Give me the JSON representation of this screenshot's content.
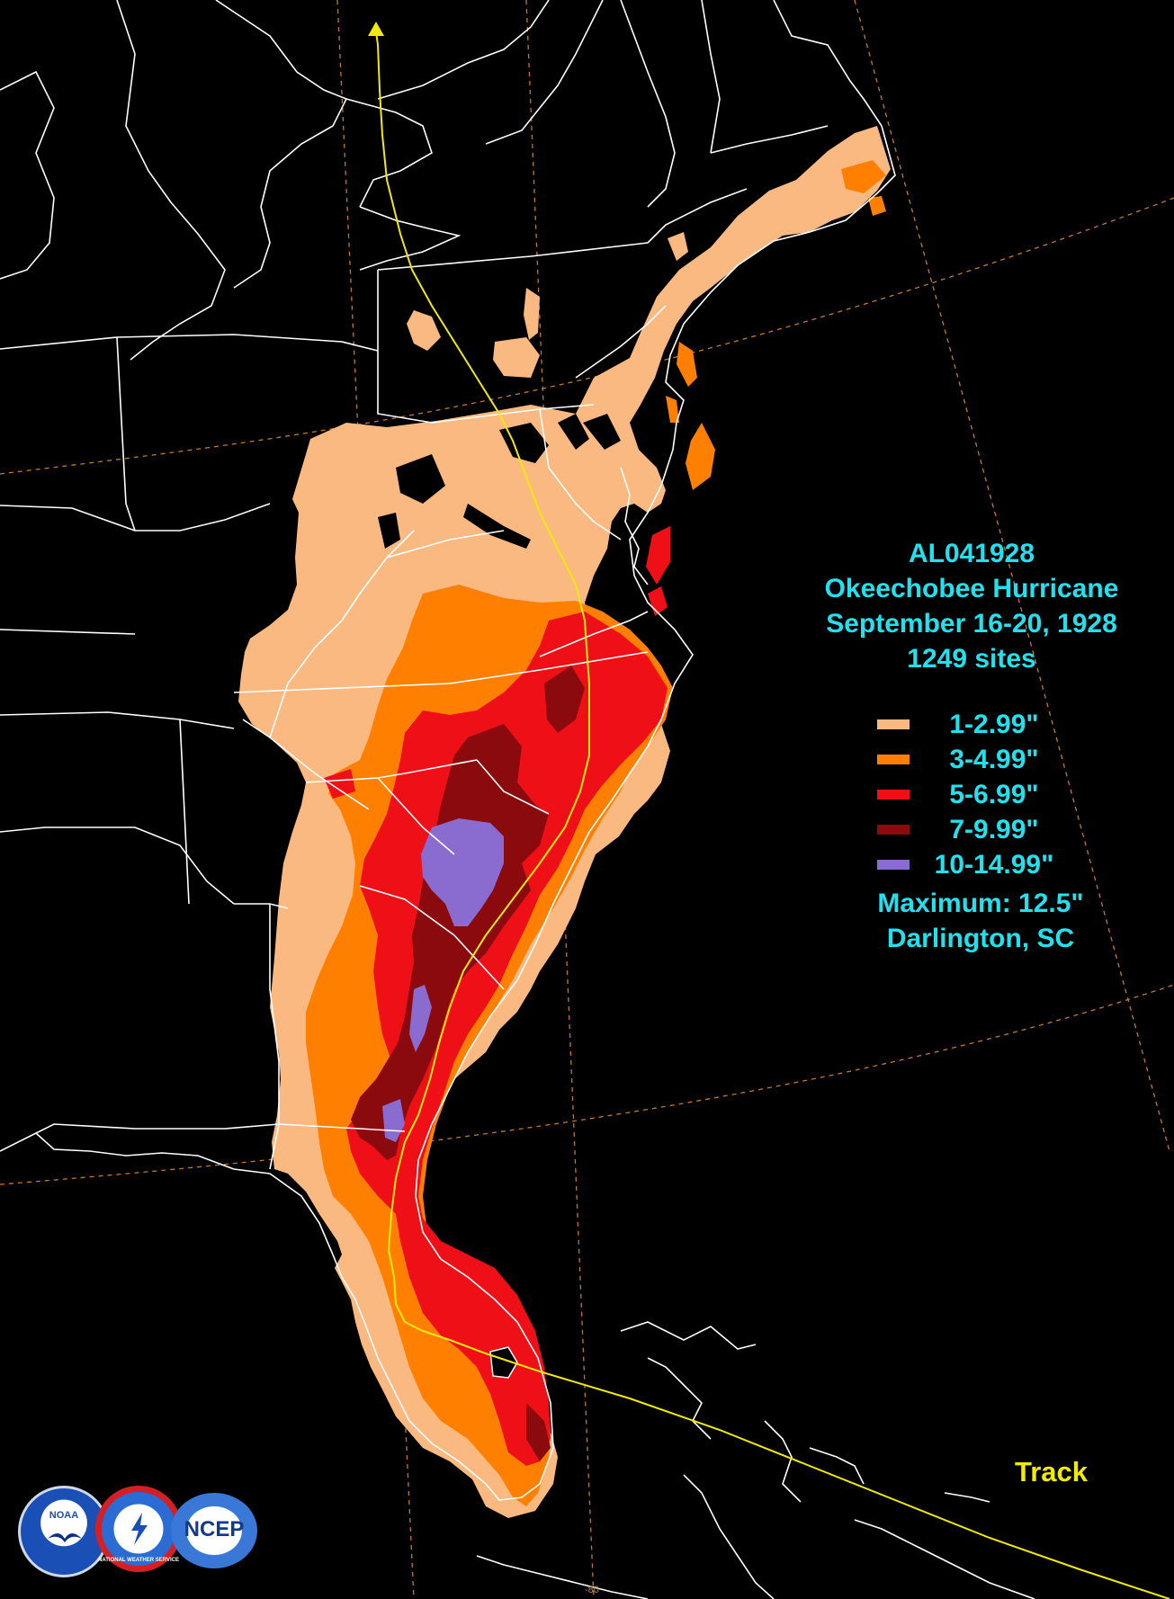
{
  "storm": {
    "id": "AL041928",
    "name": "Okeechobee Hurricane",
    "dates": "September 16-20, 1928",
    "sites": "1249 sites"
  },
  "legend": [
    {
      "label": "1-2.99\"",
      "color": "#fbb982"
    },
    {
      "label": "3-4.99\"",
      "color": "#ff8000"
    },
    {
      "label": "5-6.99\"",
      "color": "#ef0f17"
    },
    {
      "label": "7-9.99\"",
      "color": "#8b0a0e"
    },
    {
      "label": "10-14.99\"",
      "color": "#8a6bcf"
    }
  ],
  "maximum": {
    "value_text": "Maximum: 12.5\"",
    "location": "Darlington, SC"
  },
  "track_label": "Track",
  "longitude_tick": "-80",
  "logos": {
    "noaa": "NOAA",
    "nws": "NATIONAL WEATHER SERVICE",
    "ncep": "NCEP"
  },
  "colors": {
    "background": "#000000",
    "text_accent": "#22e0ee",
    "track": "#f0e90a",
    "graticule": "#c07a30",
    "boundaries": "#ffffff"
  }
}
